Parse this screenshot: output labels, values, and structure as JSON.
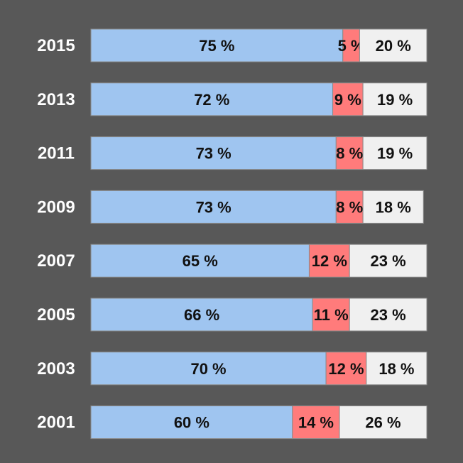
{
  "chart_data": {
    "type": "bar",
    "stacked": true,
    "orientation": "horizontal",
    "value_format": "{v} %",
    "xlim": [
      0,
      100
    ],
    "categories": [
      "2015",
      "2013",
      "2011",
      "2009",
      "2007",
      "2005",
      "2003",
      "2001"
    ],
    "series": [
      {
        "color": "#9fc5f0",
        "values": [
          75,
          72,
          73,
          73,
          65,
          66,
          70,
          60
        ]
      },
      {
        "color": "#ff7b7b",
        "values": [
          5,
          9,
          8,
          8,
          12,
          11,
          12,
          14
        ]
      },
      {
        "color": "#f0f0f0",
        "values": [
          20,
          19,
          19,
          18,
          23,
          23,
          18,
          26
        ]
      }
    ],
    "colors": {
      "background": "#585858",
      "year_text": "#ffffff",
      "value_text": "#111111",
      "bar_border": "#8a8a8a"
    }
  }
}
